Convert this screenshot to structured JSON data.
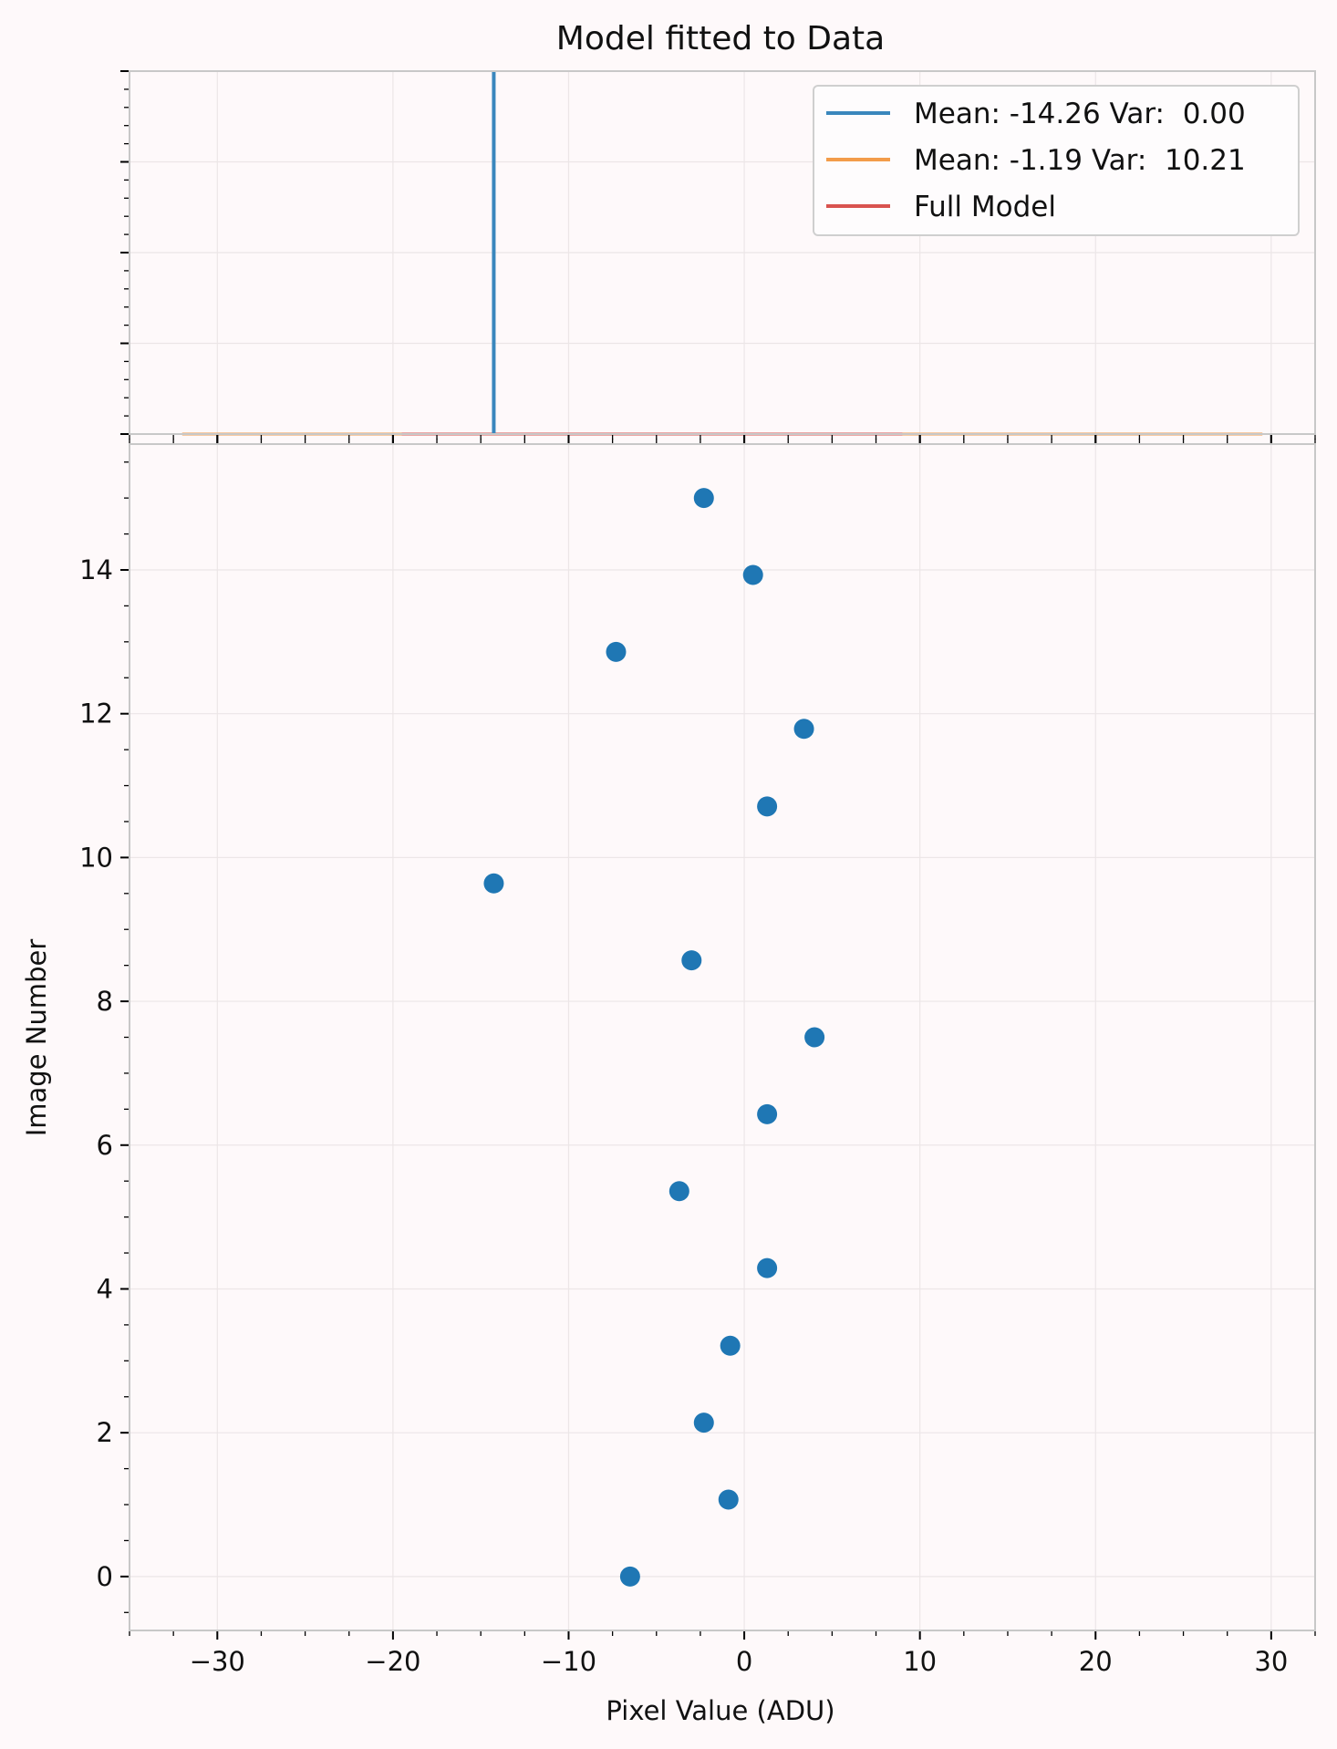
{
  "chart_data": [
    {
      "type": "line",
      "title": "Model fitted to Data",
      "xlim": [
        -35,
        32.5
      ],
      "ylim": [
        0,
        1
      ],
      "grid": true,
      "legend_position": "top-right",
      "series": [
        {
          "name": "Mean: -14.26 Var:  0.00",
          "color": "#3a87bd",
          "kind": "spike",
          "x": -14.26,
          "height": 1.0
        },
        {
          "name": "Mean: -1.19 Var:  10.21",
          "color": "#f39c4a",
          "kind": "flat",
          "x": [
            -32,
            29.5
          ],
          "y": [
            0,
            0
          ]
        },
        {
          "name": "Full Model",
          "color": "#d9534f",
          "kind": "flat",
          "x": [
            -19.5,
            9
          ],
          "y": [
            0,
            0
          ]
        }
      ]
    },
    {
      "type": "scatter",
      "title": "",
      "xlabel": "Pixel Value (ADU)",
      "ylabel": "Image Number",
      "xlim": [
        -35,
        32.5
      ],
      "ylim": [
        -0.75,
        15.75
      ],
      "xticks": [
        -30,
        -20,
        -10,
        0,
        10,
        20,
        30
      ],
      "xtick_labels": [
        "−30",
        "−20",
        "−10",
        "0",
        "10",
        "20",
        "30"
      ],
      "yticks": [
        0,
        2,
        4,
        6,
        8,
        10,
        12,
        14
      ],
      "ytick_labels": [
        "0",
        "2",
        "4",
        "6",
        "8",
        "10",
        "12",
        "14"
      ],
      "grid": true,
      "color": "#1f77b4",
      "points": [
        {
          "x": -6.5,
          "y": 0
        },
        {
          "x": -0.9,
          "y": 1.07
        },
        {
          "x": -2.3,
          "y": 2.14
        },
        {
          "x": -0.8,
          "y": 3.21
        },
        {
          "x": 1.3,
          "y": 4.29
        },
        {
          "x": -3.7,
          "y": 5.36
        },
        {
          "x": 1.3,
          "y": 6.43
        },
        {
          "x": 4.0,
          "y": 7.5
        },
        {
          "x": -3.0,
          "y": 8.57
        },
        {
          "x": -14.26,
          "y": 9.64
        },
        {
          "x": 1.3,
          "y": 10.71
        },
        {
          "x": 3.4,
          "y": 11.79
        },
        {
          "x": -7.3,
          "y": 12.86
        },
        {
          "x": 0.5,
          "y": 13.93
        },
        {
          "x": -2.3,
          "y": 15.0
        }
      ]
    }
  ]
}
